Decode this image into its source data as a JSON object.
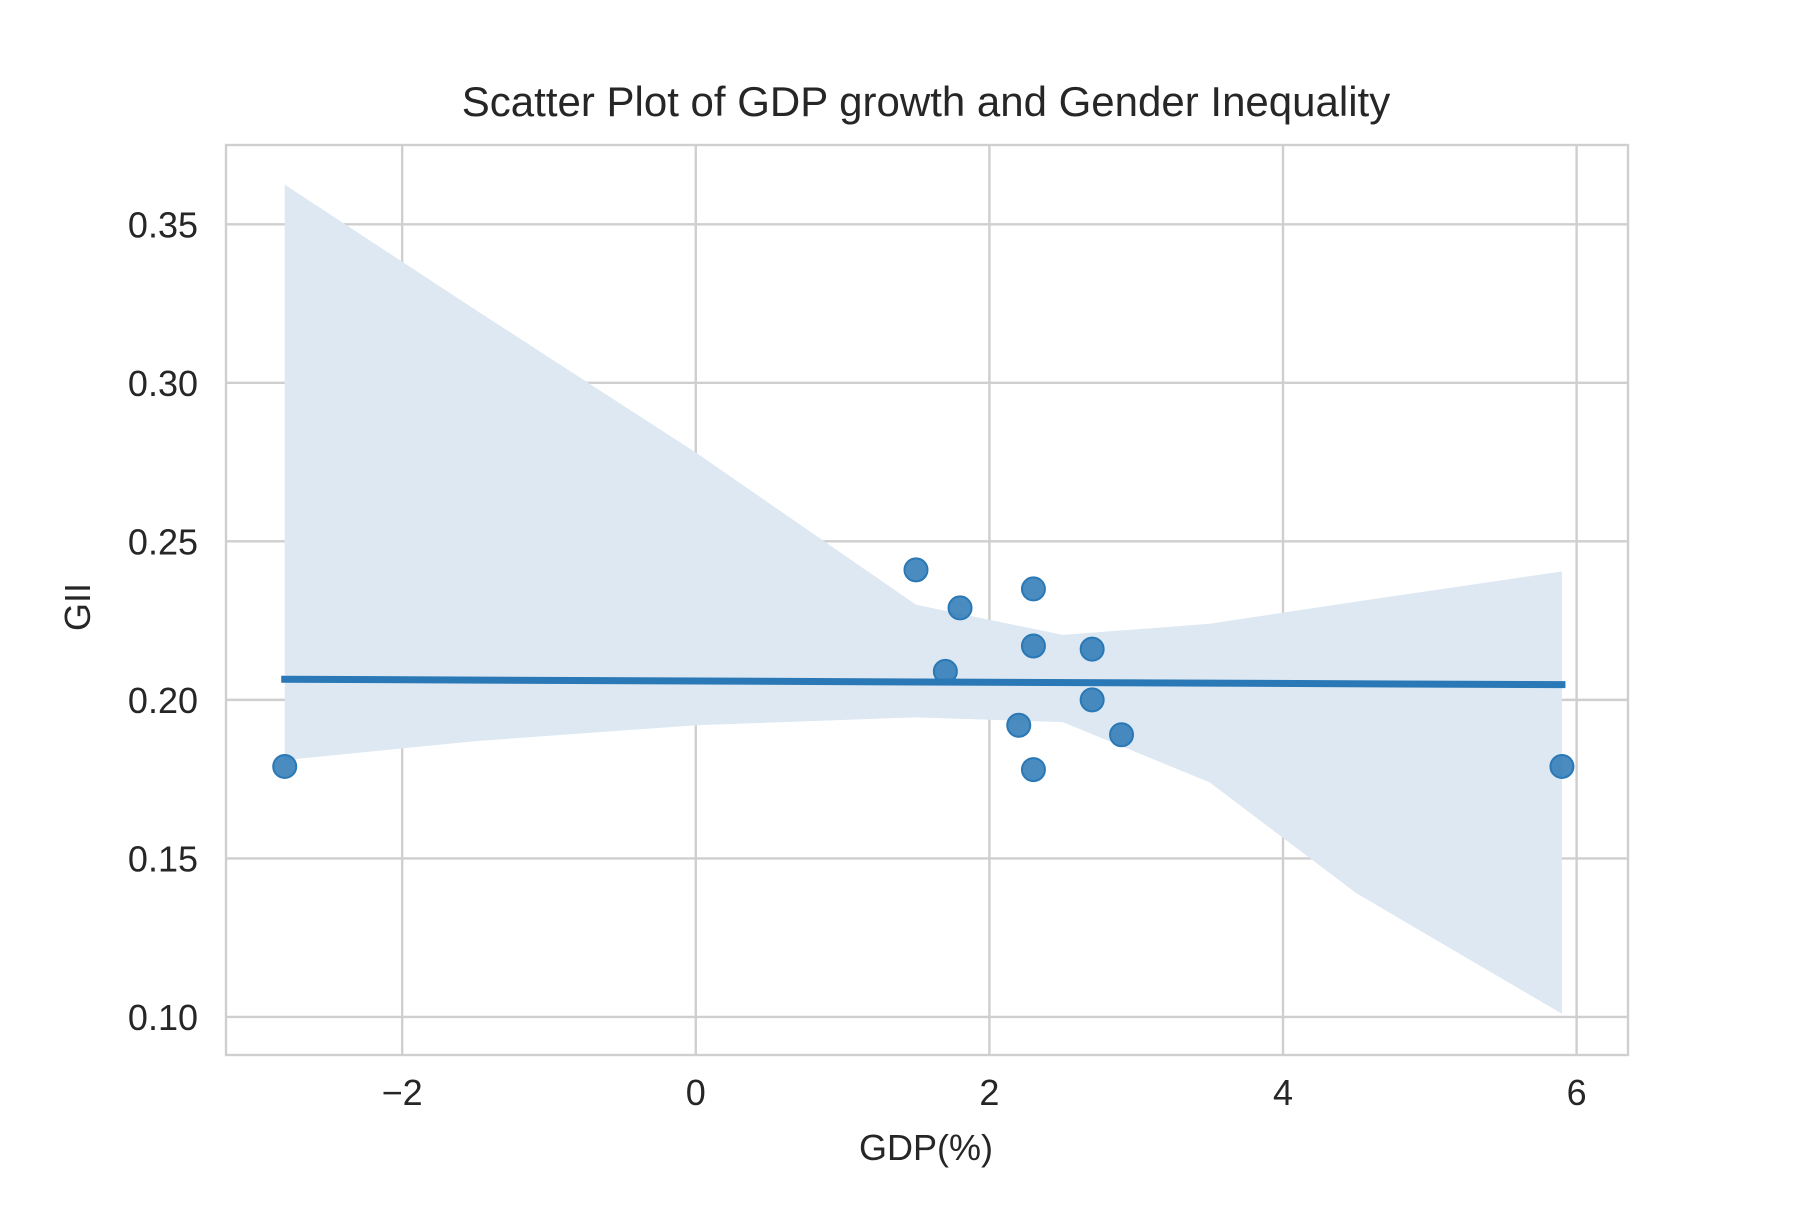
{
  "chart_data": {
    "type": "scatter",
    "title": "Scatter Plot of GDP growth and Gender Inequality",
    "xlabel": "GDP(%)",
    "ylabel": "GII",
    "xlim": [
      -3.2,
      6.35
    ],
    "ylim": [
      0.088,
      0.375
    ],
    "xticks": [
      -2,
      0,
      2,
      4,
      6
    ],
    "xtick_labels": [
      "−2",
      "0",
      "2",
      "4",
      "6"
    ],
    "yticks": [
      0.1,
      0.15,
      0.2,
      0.25,
      0.3,
      0.35
    ],
    "ytick_labels": [
      "0.10",
      "0.15",
      "0.20",
      "0.25",
      "0.30",
      "0.35"
    ],
    "grid": true,
    "points": {
      "x": [
        -2.8,
        1.5,
        1.7,
        1.8,
        2.2,
        2.3,
        2.3,
        2.3,
        2.7,
        2.7,
        2.9,
        5.9
      ],
      "y": [
        0.179,
        0.241,
        0.209,
        0.229,
        0.192,
        0.235,
        0.217,
        0.178,
        0.216,
        0.2,
        0.189,
        0.179
      ]
    },
    "regression_line": {
      "x": [
        -2.8,
        5.9
      ],
      "y": [
        0.2065,
        0.2048
      ]
    },
    "confidence_band": {
      "x": [
        -2.8,
        -1.5,
        0.0,
        1.5,
        2.5,
        3.5,
        4.5,
        5.9
      ],
      "upper": [
        0.3625,
        0.323,
        0.278,
        0.23,
        0.2205,
        0.224,
        0.231,
        0.2405
      ],
      "lower": [
        0.181,
        0.187,
        0.192,
        0.1945,
        0.193,
        0.174,
        0.139,
        0.101
      ]
    },
    "colors": {
      "series": "#2a78b5",
      "band": "#dde8f3",
      "grid": "#cfcfcf",
      "text": "#262626"
    }
  }
}
